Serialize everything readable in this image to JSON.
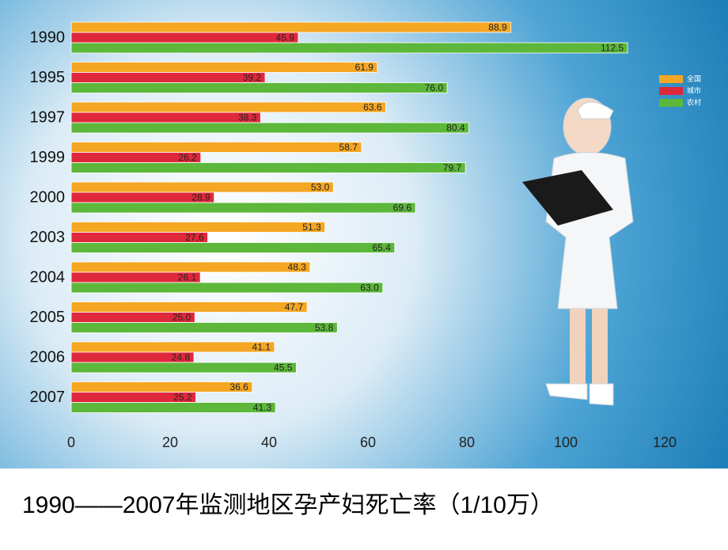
{
  "chart_data": {
    "type": "bar",
    "orientation": "horizontal",
    "title": "1990——2007年监测地区孕产妇死亡率（1/10万）",
    "categories": [
      "1990",
      "1995",
      "1997",
      "1999",
      "2000",
      "2003",
      "2004",
      "2005",
      "2006",
      "2007"
    ],
    "series": [
      {
        "name": "全国",
        "color": "#f5a623",
        "values": [
          88.9,
          61.9,
          63.6,
          58.7,
          53.0,
          51.3,
          48.3,
          47.7,
          41.1,
          36.6
        ],
        "value_labels": [
          "88.9",
          "61.9",
          "63.6",
          "58.7",
          "53.0",
          "51.3",
          "48.3",
          "47.7",
          "41.1",
          "36.6"
        ]
      },
      {
        "name": "城市",
        "color": "#e0283c",
        "values": [
          45.9,
          39.2,
          38.3,
          26.2,
          28.9,
          27.6,
          26.1,
          25.0,
          24.8,
          25.2
        ],
        "value_labels": [
          "45.9",
          "39.2",
          "38.3",
          "26.2",
          "28.9",
          "27.6",
          "26.1",
          "25.0",
          "24.8",
          "25.2"
        ]
      },
      {
        "name": "农村",
        "color": "#5cb73a",
        "values": [
          112.5,
          76.0,
          80.4,
          79.7,
          69.6,
          65.4,
          63.0,
          53.8,
          45.5,
          41.3
        ],
        "value_labels": [
          "112.5",
          "76.0",
          "80.4",
          "79.7",
          "69.6",
          "65.4",
          "63.0",
          "53.8",
          "45.5",
          "41.3"
        ]
      }
    ],
    "xlim": [
      0,
      120
    ],
    "xticks": [
      0,
      20,
      40,
      60,
      80,
      100,
      120
    ],
    "grid": false
  }
}
